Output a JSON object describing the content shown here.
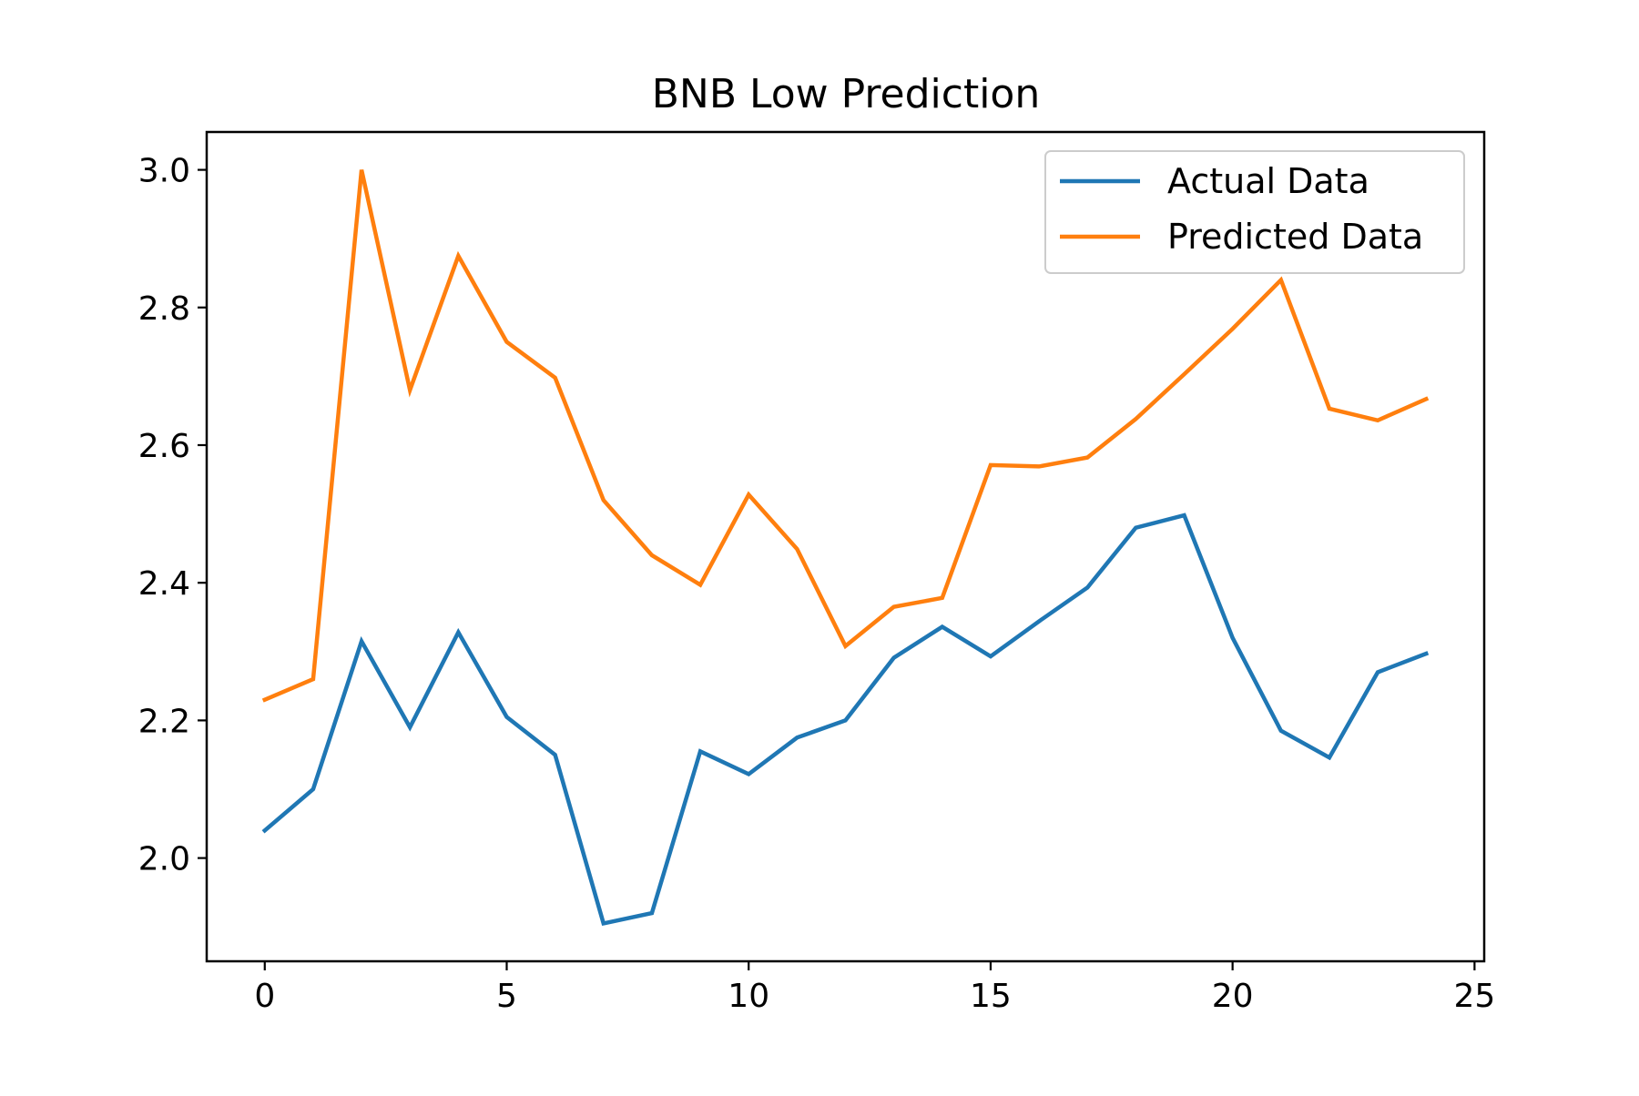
{
  "chart_data": {
    "type": "line",
    "title": "BNB Low Prediction",
    "xlabel": "",
    "ylabel": "",
    "xlim": [
      -1.2,
      25.2
    ],
    "ylim": [
      1.85,
      3.055
    ],
    "xticks": [
      0,
      5,
      10,
      15,
      20,
      25
    ],
    "xtick_labels": [
      "0",
      "5",
      "10",
      "15",
      "20",
      "25"
    ],
    "yticks": [
      2.0,
      2.2,
      2.4,
      2.6,
      2.8,
      3.0
    ],
    "ytick_labels": [
      "2.0",
      "2.2",
      "2.4",
      "2.6",
      "2.8",
      "3.0"
    ],
    "grid": false,
    "legend_position": "upper right",
    "x": [
      0,
      1,
      2,
      3,
      4,
      5,
      6,
      7,
      8,
      9,
      10,
      11,
      12,
      13,
      14,
      15,
      16,
      17,
      18,
      19,
      20,
      21,
      22,
      23,
      24
    ],
    "series": [
      {
        "name": "Actual Data",
        "color": "#1f77b4",
        "values": [
          2.04,
          2.1,
          2.315,
          2.19,
          2.328,
          2.205,
          2.15,
          1.905,
          1.92,
          2.155,
          2.122,
          2.175,
          2.2,
          2.291,
          2.336,
          2.293,
          2.344,
          2.393,
          2.48,
          2.498,
          2.32,
          2.185,
          2.146,
          2.27,
          2.297
        ]
      },
      {
        "name": "Predicted Data",
        "color": "#ff7f0e",
        "values": [
          2.23,
          2.26,
          3.0,
          2.68,
          2.875,
          2.75,
          2.698,
          2.52,
          2.44,
          2.397,
          2.528,
          2.449,
          2.308,
          2.365,
          2.378,
          2.571,
          2.569,
          2.582,
          2.638,
          2.703,
          2.769,
          2.84,
          2.653,
          2.636,
          2.667
        ]
      }
    ]
  }
}
